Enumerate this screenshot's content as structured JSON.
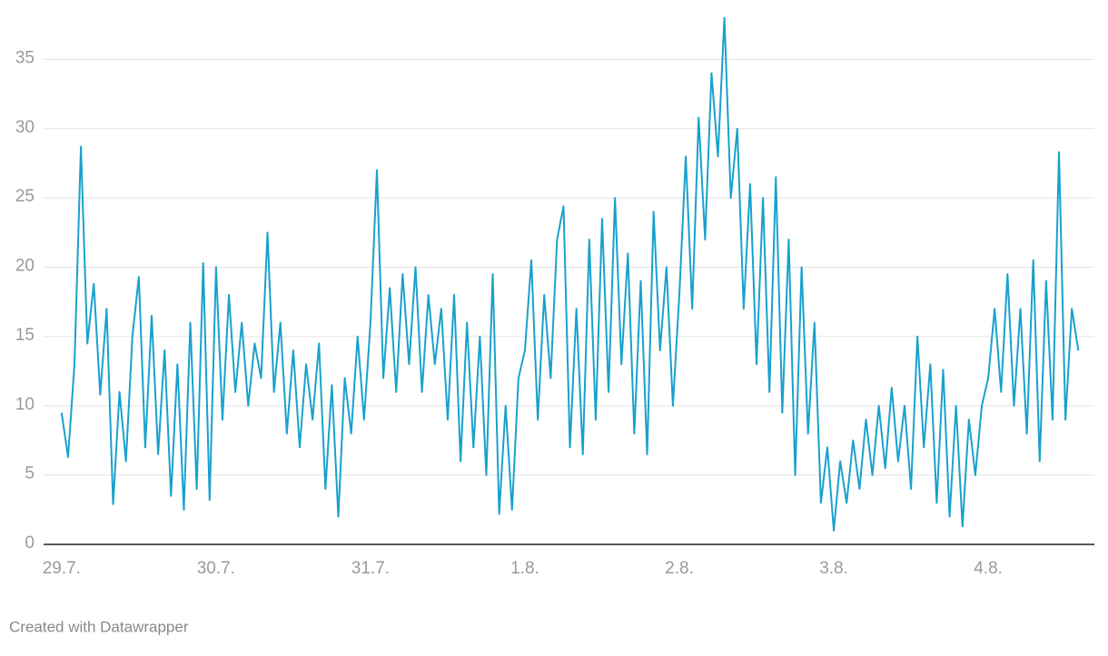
{
  "chart_data": {
    "type": "line",
    "credit": "Created with Datawrapper",
    "x": [
      0,
      1,
      2,
      3,
      4,
      5,
      6,
      7,
      8,
      9,
      10,
      11,
      12,
      13,
      14,
      15,
      16,
      17,
      18,
      19,
      20,
      21,
      22,
      23,
      24,
      25,
      26,
      27,
      28,
      29,
      30,
      31,
      32,
      33,
      34,
      35,
      36,
      37,
      38,
      39,
      40,
      41,
      42,
      43,
      44,
      45,
      46,
      47,
      48,
      49,
      50,
      51,
      52,
      53,
      54,
      55,
      56,
      57,
      58,
      59,
      60,
      61,
      62,
      63,
      64,
      65,
      66,
      67,
      68,
      69,
      70,
      71,
      72,
      73,
      74,
      75,
      76,
      77,
      78,
      79,
      80,
      81,
      82,
      83,
      84,
      85,
      86,
      87,
      88,
      89,
      90,
      91,
      92,
      93,
      94,
      95,
      96,
      97,
      98,
      99,
      100,
      101,
      102,
      103,
      104,
      105,
      106,
      107,
      108,
      109,
      110,
      111,
      112,
      113,
      114,
      115,
      116,
      117,
      118,
      119,
      120,
      121,
      122,
      123,
      124,
      125,
      126,
      127,
      128,
      129,
      130,
      131,
      132,
      133,
      134,
      135,
      136,
      137,
      138,
      139,
      140,
      141,
      142,
      143,
      144,
      145,
      146,
      147,
      148,
      149,
      150,
      151,
      152,
      153,
      154,
      155,
      156,
      157,
      158
    ],
    "series": [
      {
        "color": "#18a1cd",
        "values": [
          9.5,
          6.3,
          13,
          28.7,
          14.5,
          18.8,
          10.8,
          17,
          2.9,
          11,
          6,
          15,
          19.3,
          7,
          16.5,
          6.5,
          14,
          3.5,
          13,
          2.5,
          16,
          4,
          20.3,
          3.2,
          20,
          9,
          18,
          11,
          16,
          10,
          14.5,
          12,
          22.5,
          11,
          16,
          8,
          14,
          7,
          13,
          9,
          14.5,
          4,
          11.5,
          2,
          12,
          8,
          15,
          9,
          16,
          27,
          12,
          18.5,
          11,
          19.5,
          13,
          20,
          11,
          18,
          13,
          17,
          9,
          18,
          6,
          16,
          7,
          15,
          5,
          19.5,
          2.2,
          10,
          2.5,
          12,
          14,
          20.5,
          9,
          18,
          12,
          22,
          24.4,
          7,
          17,
          6.5,
          22,
          9,
          23.5,
          11,
          25,
          13,
          21,
          8,
          19,
          6.5,
          24,
          14,
          20,
          10,
          18,
          28,
          17,
          30.8,
          22,
          34,
          28,
          38,
          25,
          30,
          17,
          26,
          13,
          25,
          11,
          26.5,
          9.5,
          22,
          5,
          20,
          8,
          16,
          3,
          7,
          1,
          6,
          3,
          7.5,
          4,
          9,
          5,
          10,
          5.5,
          11.3,
          6,
          10,
          4,
          15,
          7,
          13,
          3,
          12.6,
          2,
          10,
          1.3,
          9,
          5,
          10,
          12,
          17,
          11,
          19.5,
          10,
          17,
          8,
          20.5,
          6,
          19,
          9,
          28.3,
          9,
          17,
          14
        ]
      }
    ],
    "xlim": [
      -2.8,
      160.5
    ],
    "xticks": [
      {
        "value": 0,
        "label": "29.7."
      },
      {
        "value": 24,
        "label": "30.7."
      },
      {
        "value": 48,
        "label": "31.7."
      },
      {
        "value": 72,
        "label": "1.8."
      },
      {
        "value": 96,
        "label": "2.8."
      },
      {
        "value": 120,
        "label": "3.8."
      },
      {
        "value": 144,
        "label": "4.8."
      }
    ],
    "ylim": [
      0,
      38
    ],
    "yticks": [
      0,
      5,
      10,
      15,
      20,
      25,
      30,
      35
    ],
    "grid": true
  }
}
